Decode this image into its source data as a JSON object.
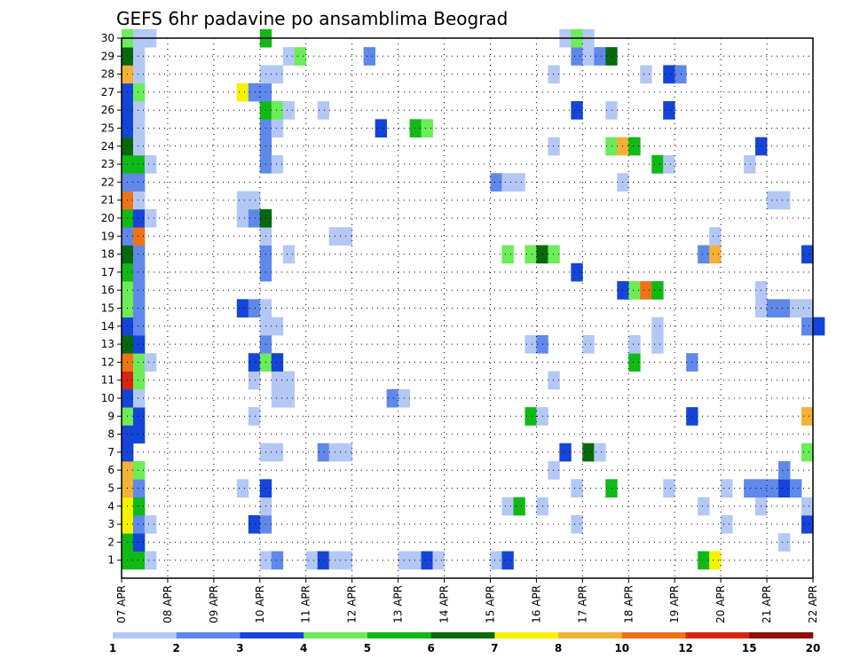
{
  "chart_data": {
    "type": "heatmap",
    "title": "GEFS 6hr padavine po ansamblima Beograd",
    "xlabel": "",
    "ylabel": "",
    "x_tick_labels": [
      "07 APR",
      "08 APR",
      "09 APR",
      "10 APR",
      "11 APR",
      "12 APR",
      "13 APR",
      "14 APR",
      "15 APR",
      "16 APR",
      "17 APR",
      "18 APR",
      "19 APR",
      "20 APR",
      "21 APR",
      "22 APR"
    ],
    "x_range_days": [
      0,
      15
    ],
    "y_tick_labels": [
      "1",
      "2",
      "3",
      "4",
      "5",
      "6",
      "7",
      "8",
      "9",
      "10",
      "11",
      "12",
      "13",
      "14",
      "15",
      "16",
      "17",
      "18",
      "19",
      "20",
      "21",
      "22",
      "23",
      "24",
      "25",
      "26",
      "27",
      "28",
      "29",
      "30"
    ],
    "y_range": [
      0,
      30
    ],
    "grid": true,
    "colorbar": {
      "levels": [
        1,
        2,
        3,
        4,
        5,
        6,
        7,
        8,
        10,
        12,
        15,
        20
      ],
      "tick_labels": [
        "1",
        "2",
        "3",
        "4",
        "5",
        "6",
        "7",
        "8",
        "10",
        "12",
        "15",
        "20"
      ],
      "colors": [
        "#b4c8f5",
        "#5f88eb",
        "#1545d8",
        "#6cec57",
        "#10b916",
        "#07690c",
        "#f5f200",
        "#f4b135",
        "#f07216",
        "#d72512",
        "#8e0d0b"
      ]
    },
    "cells": [
      [
        1,
        0,
        5
      ],
      [
        1,
        1,
        5
      ],
      [
        1,
        2,
        1
      ],
      [
        1,
        16,
        1
      ],
      [
        1,
        17,
        3
      ],
      [
        1,
        18,
        1
      ],
      [
        1,
        19,
        1
      ],
      [
        1,
        24,
        1
      ],
      [
        1,
        25,
        1
      ],
      [
        1,
        26,
        3
      ],
      [
        1,
        27,
        1
      ],
      [
        1,
        32,
        1
      ],
      [
        1,
        33,
        3
      ],
      [
        1,
        12,
        1
      ],
      [
        1,
        13,
        2
      ],
      [
        1,
        50,
        5
      ],
      [
        1,
        51,
        7
      ],
      [
        2,
        0,
        5
      ],
      [
        2,
        1,
        3
      ],
      [
        2,
        57,
        1
      ],
      [
        3,
        0,
        7
      ],
      [
        3,
        1,
        2
      ],
      [
        3,
        2,
        1
      ],
      [
        3,
        11,
        3
      ],
      [
        3,
        12,
        2
      ],
      [
        3,
        39,
        1
      ],
      [
        3,
        52,
        1
      ],
      [
        3,
        59,
        3
      ],
      [
        4,
        0,
        7
      ],
      [
        4,
        1,
        5
      ],
      [
        4,
        33,
        1
      ],
      [
        4,
        34,
        5
      ],
      [
        4,
        36,
        1
      ],
      [
        4,
        12,
        1
      ],
      [
        4,
        50,
        1
      ],
      [
        4,
        55,
        1
      ],
      [
        4,
        59,
        1
      ],
      [
        5,
        0,
        8
      ],
      [
        5,
        1,
        2
      ],
      [
        5,
        10,
        1
      ],
      [
        5,
        12,
        3
      ],
      [
        5,
        39,
        1
      ],
      [
        5,
        42,
        5
      ],
      [
        5,
        47,
        1
      ],
      [
        5,
        52,
        1
      ],
      [
        5,
        54,
        2
      ],
      [
        5,
        55,
        2
      ],
      [
        5,
        56,
        2
      ],
      [
        5,
        57,
        3
      ],
      [
        5,
        58,
        2
      ],
      [
        6,
        0,
        8
      ],
      [
        6,
        1,
        4
      ],
      [
        6,
        37,
        1
      ],
      [
        6,
        57,
        2
      ],
      [
        7,
        0,
        3
      ],
      [
        7,
        12,
        1
      ],
      [
        7,
        13,
        1
      ],
      [
        7,
        17,
        2
      ],
      [
        7,
        18,
        1
      ],
      [
        7,
        19,
        1
      ],
      [
        7,
        38,
        3
      ],
      [
        7,
        40,
        6
      ],
      [
        7,
        41,
        1
      ],
      [
        7,
        59,
        4
      ],
      [
        8,
        0,
        3
      ],
      [
        8,
        1,
        3
      ],
      [
        9,
        0,
        4
      ],
      [
        9,
        1,
        3
      ],
      [
        9,
        11,
        1
      ],
      [
        9,
        35,
        5
      ],
      [
        9,
        36,
        1
      ],
      [
        9,
        49,
        3
      ],
      [
        9,
        59,
        8
      ],
      [
        10,
        0,
        3
      ],
      [
        10,
        1,
        1
      ],
      [
        10,
        13,
        1
      ],
      [
        10,
        14,
        1
      ],
      [
        10,
        23,
        2
      ],
      [
        10,
        24,
        1
      ],
      [
        11,
        0,
        10
      ],
      [
        11,
        1,
        4
      ],
      [
        11,
        11,
        1
      ],
      [
        11,
        13,
        1
      ],
      [
        11,
        14,
        1
      ],
      [
        11,
        37,
        1
      ],
      [
        12,
        0,
        9
      ],
      [
        12,
        1,
        4
      ],
      [
        12,
        2,
        1
      ],
      [
        12,
        11,
        3
      ],
      [
        12,
        12,
        4
      ],
      [
        12,
        13,
        3
      ],
      [
        12,
        44,
        5
      ],
      [
        12,
        49,
        2
      ],
      [
        13,
        0,
        6
      ],
      [
        13,
        1,
        3
      ],
      [
        13,
        12,
        2
      ],
      [
        13,
        35,
        1
      ],
      [
        13,
        36,
        2
      ],
      [
        13,
        40,
        1
      ],
      [
        13,
        44,
        1
      ],
      [
        13,
        46,
        1
      ],
      [
        14,
        0,
        3
      ],
      [
        14,
        1,
        2
      ],
      [
        14,
        12,
        1
      ],
      [
        14,
        13,
        1
      ],
      [
        14,
        46,
        1
      ],
      [
        14,
        59,
        2
      ],
      [
        14,
        60,
        3
      ],
      [
        15,
        0,
        4
      ],
      [
        15,
        1,
        2
      ],
      [
        15,
        10,
        3
      ],
      [
        15,
        11,
        2
      ],
      [
        15,
        12,
        1
      ],
      [
        15,
        55,
        1
      ],
      [
        15,
        56,
        2
      ],
      [
        15,
        57,
        2
      ],
      [
        15,
        58,
        1
      ],
      [
        15,
        59,
        1
      ],
      [
        16,
        0,
        4
      ],
      [
        16,
        1,
        2
      ],
      [
        16,
        43,
        3
      ],
      [
        16,
        44,
        4
      ],
      [
        16,
        45,
        9
      ],
      [
        16,
        46,
        5
      ],
      [
        16,
        55,
        1
      ],
      [
        17,
        0,
        5
      ],
      [
        17,
        1,
        2
      ],
      [
        17,
        12,
        2
      ],
      [
        17,
        39,
        3
      ],
      [
        18,
        0,
        6
      ],
      [
        18,
        1,
        2
      ],
      [
        18,
        12,
        2
      ],
      [
        18,
        14,
        1
      ],
      [
        18,
        33,
        4
      ],
      [
        18,
        35,
        4
      ],
      [
        18,
        36,
        6
      ],
      [
        18,
        37,
        4
      ],
      [
        18,
        50,
        2
      ],
      [
        18,
        51,
        8
      ],
      [
        18,
        59,
        3
      ],
      [
        19,
        0,
        2
      ],
      [
        19,
        1,
        9
      ],
      [
        19,
        12,
        1
      ],
      [
        19,
        18,
        1
      ],
      [
        19,
        19,
        1
      ],
      [
        19,
        51,
        1
      ],
      [
        20,
        0,
        5
      ],
      [
        20,
        1,
        3
      ],
      [
        20,
        2,
        1
      ],
      [
        20,
        10,
        1
      ],
      [
        20,
        11,
        2
      ],
      [
        20,
        12,
        6
      ],
      [
        21,
        0,
        9
      ],
      [
        21,
        1,
        1
      ],
      [
        21,
        10,
        1
      ],
      [
        21,
        11,
        1
      ],
      [
        21,
        56,
        1
      ],
      [
        21,
        57,
        1
      ],
      [
        22,
        0,
        2
      ],
      [
        22,
        1,
        2
      ],
      [
        22,
        32,
        2
      ],
      [
        22,
        33,
        1
      ],
      [
        22,
        34,
        1
      ],
      [
        22,
        43,
        1
      ],
      [
        23,
        0,
        5
      ],
      [
        23,
        1,
        5
      ],
      [
        23,
        2,
        1
      ],
      [
        23,
        12,
        2
      ],
      [
        23,
        13,
        1
      ],
      [
        23,
        46,
        5
      ],
      [
        23,
        47,
        1
      ],
      [
        23,
        54,
        1
      ],
      [
        24,
        0,
        6
      ],
      [
        24,
        1,
        1
      ],
      [
        24,
        12,
        2
      ],
      [
        24,
        37,
        1
      ],
      [
        24,
        42,
        4
      ],
      [
        24,
        43,
        8
      ],
      [
        24,
        44,
        5
      ],
      [
        24,
        55,
        3
      ],
      [
        25,
        0,
        3
      ],
      [
        25,
        1,
        1
      ],
      [
        25,
        12,
        2
      ],
      [
        25,
        13,
        1
      ],
      [
        25,
        22,
        3
      ],
      [
        25,
        25,
        5
      ],
      [
        25,
        26,
        4
      ],
      [
        26,
        0,
        3
      ],
      [
        26,
        1,
        1
      ],
      [
        26,
        12,
        5
      ],
      [
        26,
        13,
        4
      ],
      [
        26,
        14,
        1
      ],
      [
        26,
        17,
        1
      ],
      [
        26,
        39,
        3
      ],
      [
        26,
        42,
        1
      ],
      [
        26,
        47,
        3
      ],
      [
        27,
        0,
        3
      ],
      [
        27,
        1,
        4
      ],
      [
        27,
        10,
        7
      ],
      [
        27,
        11,
        2
      ],
      [
        27,
        12,
        2
      ],
      [
        28,
        0,
        8
      ],
      [
        28,
        1,
        1
      ],
      [
        28,
        12,
        1
      ],
      [
        28,
        13,
        1
      ],
      [
        28,
        37,
        1
      ],
      [
        28,
        45,
        1
      ],
      [
        28,
        47,
        3
      ],
      [
        28,
        48,
        2
      ],
      [
        29,
        0,
        6
      ],
      [
        29,
        1,
        1
      ],
      [
        29,
        14,
        1
      ],
      [
        29,
        15,
        4
      ],
      [
        29,
        21,
        2
      ],
      [
        29,
        39,
        2
      ],
      [
        29,
        40,
        1
      ],
      [
        29,
        41,
        2
      ],
      [
        29,
        42,
        6
      ],
      [
        30,
        0,
        4
      ],
      [
        30,
        1,
        1
      ],
      [
        30,
        2,
        1
      ],
      [
        30,
        12,
        5
      ],
      [
        30,
        38,
        1
      ],
      [
        30,
        39,
        4
      ],
      [
        30,
        40,
        1
      ]
    ]
  }
}
